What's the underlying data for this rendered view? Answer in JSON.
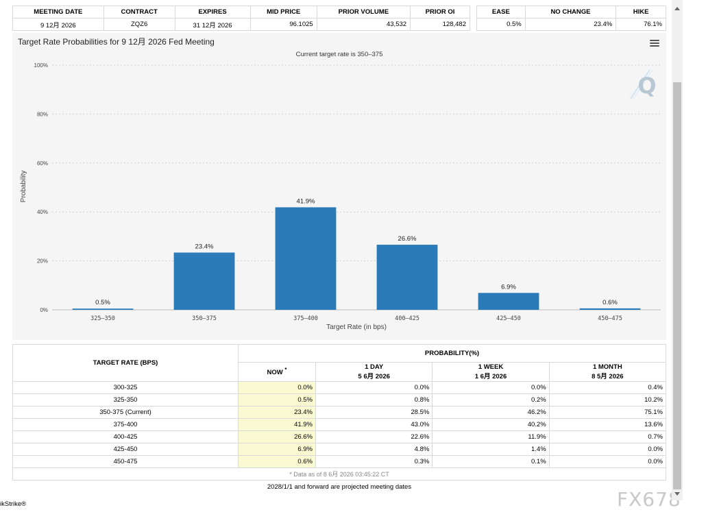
{
  "meeting_table": {
    "headers": [
      "MEETING DATE",
      "CONTRACT",
      "EXPIRES",
      "MID PRICE",
      "PRIOR VOLUME",
      "PRIOR OI"
    ],
    "row": [
      "9 12月 2026",
      "ZQZ6",
      "31 12月 2026",
      "96.1025",
      "43,532",
      "128,482"
    ]
  },
  "outcome_table": {
    "headers": [
      "EASE",
      "NO CHANGE",
      "HIKE"
    ],
    "row": [
      "0.5%",
      "23.4%",
      "76.1%"
    ]
  },
  "chart_data": {
    "type": "bar",
    "title": "Target Rate Probabilities for 9 12月 2026 Fed Meeting",
    "subtitle": "Current target rate is 350–375",
    "xlabel": "Target Rate (in bps)",
    "ylabel": "Probability",
    "categories": [
      "325–350",
      "350–375",
      "375–400",
      "400–425",
      "425–450",
      "450–475"
    ],
    "values": [
      0.5,
      23.4,
      41.9,
      26.6,
      6.9,
      0.6
    ],
    "data_labels": [
      "0.5%",
      "23.4%",
      "41.9%",
      "26.6%",
      "6.9%",
      "0.6%"
    ],
    "ylim": [
      0,
      100
    ],
    "yticks": [
      0,
      20,
      40,
      60,
      80,
      100
    ],
    "ytick_labels": [
      "0%",
      "20%",
      "40%",
      "60%",
      "80%",
      "100%"
    ],
    "bar_color": "#2b7bb9",
    "grid": true,
    "legend": "none"
  },
  "chart_logo": "Q",
  "prob_table": {
    "col_rate": "TARGET RATE (BPS)",
    "col_prob": "PROBABILITY(%)",
    "now": "NOW",
    "now_mark": "*",
    "day_label": "1 DAY",
    "day_date": "5 6月 2026",
    "week_label": "1 WEEK",
    "week_date": "1 6月 2026",
    "month_label": "1 MONTH",
    "month_date": "8 5月 2026",
    "rows": [
      [
        "300-325",
        "0.0%",
        "0.0%",
        "0.0%",
        "0.4%"
      ],
      [
        "325-350",
        "0.5%",
        "0.8%",
        "0.2%",
        "10.2%"
      ],
      [
        "350-375 (Current)",
        "23.4%",
        "28.5%",
        "46.2%",
        "75.1%"
      ],
      [
        "375-400",
        "41.9%",
        "43.0%",
        "40.2%",
        "13.6%"
      ],
      [
        "400-425",
        "26.6%",
        "22.6%",
        "11.9%",
        "0.7%"
      ],
      [
        "425-450",
        "6.9%",
        "4.8%",
        "1.4%",
        "0.0%"
      ],
      [
        "450-475",
        "0.6%",
        "0.3%",
        "0.1%",
        "0.0%"
      ]
    ],
    "footnote": "* Data as of 8 6月 2026 03:45:22 CT"
  },
  "projected_note": "2028/1/1 and forward are projected meeting dates",
  "brand_text": "ikStrike®",
  "watermark": "FX678"
}
